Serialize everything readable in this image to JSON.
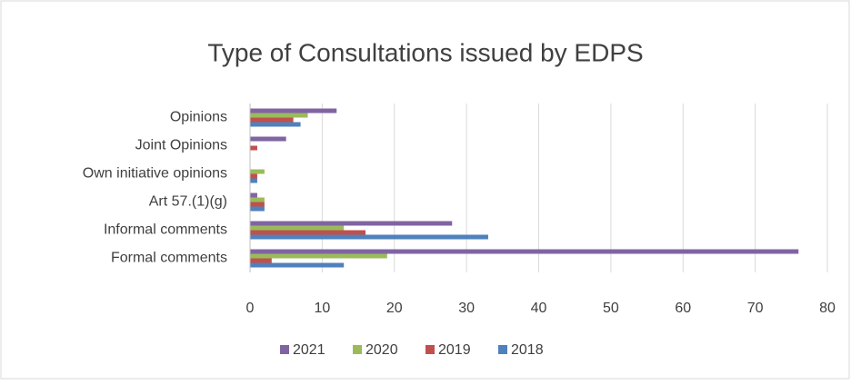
{
  "chart_data": {
    "type": "bar",
    "orientation": "horizontal",
    "title": "Type of Consultations issued by EDPS",
    "categories": [
      "Opinions",
      "Joint Opinions",
      "Own initiative opinions",
      "Art 57.(1)(g)",
      "Informal comments",
      "Formal comments"
    ],
    "series": [
      {
        "name": "2021",
        "color": "#8064a2",
        "values": [
          12,
          5,
          0,
          1,
          28,
          76
        ]
      },
      {
        "name": "2020",
        "color": "#9bbb59",
        "values": [
          8,
          0,
          2,
          2,
          13,
          19
        ]
      },
      {
        "name": "2019",
        "color": "#c0504d",
        "values": [
          6,
          1,
          1,
          2,
          16,
          3
        ]
      },
      {
        "name": "2018",
        "color": "#4f81bd",
        "values": [
          7,
          0,
          1,
          2,
          33,
          13
        ]
      }
    ],
    "xlim": [
      0,
      80
    ],
    "xticks": [
      0,
      10,
      20,
      30,
      40,
      50,
      60,
      70,
      80
    ],
    "grid": true,
    "legend": "bottom"
  }
}
